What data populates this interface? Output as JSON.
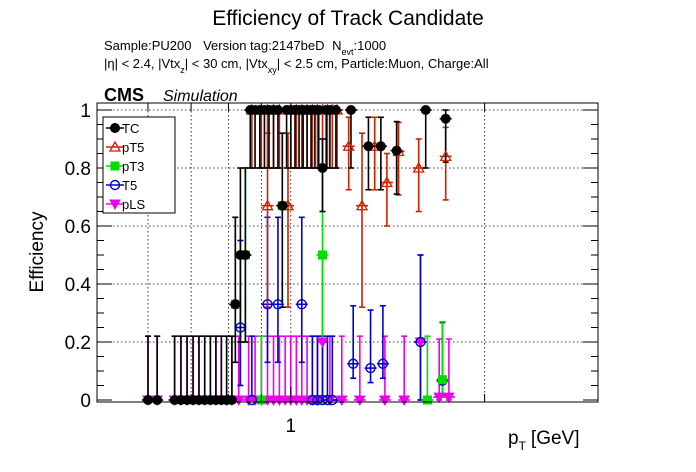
{
  "chart_data": {
    "type": "scatter",
    "title": "Efficiency of Track Candidate",
    "subtitle_line1": {
      "sample": "Sample:PU200",
      "version": "Version tag:2147beD",
      "nevt_prefix": "N",
      "nevt_sub": "evt",
      "nevt_value": ":1000"
    },
    "subtitle_line2": "|η| < 2.4, |Vtx_z| < 30 cm, |Vtx_xy| < 2.5 cm, Particle:Muon, Charge:All",
    "subtitle_line2_parts": [
      "|η| < 2.4, |Vtx",
      "z",
      "| < 30 cm, |Vtx",
      "xy",
      "| < 2.5 cm, Particle:Muon, Charge:All"
    ],
    "cms_label": "CMS",
    "cms_sublabel": "Simulation",
    "ylabel": "Efficiency",
    "xlabel_main": "p",
    "xlabel_sub": "T",
    "xlabel_unit": "[GeV]",
    "xscale": "log",
    "xlim": [
      0.5,
      3.0
    ],
    "ylim": [
      0,
      1.02
    ],
    "xtick_labels": [
      {
        "value": 1,
        "label": "1"
      }
    ],
    "yticks": [
      0,
      0.2,
      0.4,
      0.6,
      0.8,
      1
    ],
    "ytick_labels": [
      "0",
      "0.2",
      "0.4",
      "0.6",
      "0.8",
      "1"
    ],
    "grid": true,
    "legend_position": "top-left",
    "series": [
      {
        "name": "TC",
        "color": "#000000",
        "marker": "filled-circle",
        "points": [
          {
            "x": 0.6,
            "y": 0
          },
          {
            "x": 0.62,
            "y": 0
          },
          {
            "x": 0.66,
            "y": 0
          },
          {
            "x": 0.675,
            "y": 0
          },
          {
            "x": 0.69,
            "y": 0
          },
          {
            "x": 0.705,
            "y": 0
          },
          {
            "x": 0.72,
            "y": 0
          },
          {
            "x": 0.735,
            "y": 0
          },
          {
            "x": 0.75,
            "y": 0
          },
          {
            "x": 0.765,
            "y": 0
          },
          {
            "x": 0.78,
            "y": 0
          },
          {
            "x": 0.795,
            "y": 0
          },
          {
            "x": 0.81,
            "y": 0
          },
          {
            "x": 0.82,
            "y": 0.33
          },
          {
            "x": 0.835,
            "y": 0.5
          },
          {
            "x": 0.85,
            "y": 0.5
          },
          {
            "x": 0.865,
            "y": 1
          },
          {
            "x": 0.88,
            "y": 1
          },
          {
            "x": 0.895,
            "y": 1
          },
          {
            "x": 0.91,
            "y": 1
          },
          {
            "x": 0.925,
            "y": 1
          },
          {
            "x": 0.94,
            "y": 1
          },
          {
            "x": 0.955,
            "y": 1
          },
          {
            "x": 0.97,
            "y": 0.67
          },
          {
            "x": 0.985,
            "y": 1
          },
          {
            "x": 1.0,
            "y": 1
          },
          {
            "x": 1.015,
            "y": 1
          },
          {
            "x": 1.03,
            "y": 1
          },
          {
            "x": 1.045,
            "y": 1
          },
          {
            "x": 1.06,
            "y": 1
          },
          {
            "x": 1.075,
            "y": 1
          },
          {
            "x": 1.09,
            "y": 1
          },
          {
            "x": 1.105,
            "y": 1
          },
          {
            "x": 1.12,
            "y": 0.8
          },
          {
            "x": 1.135,
            "y": 1
          },
          {
            "x": 1.15,
            "y": 1
          },
          {
            "x": 1.175,
            "y": 1
          },
          {
            "x": 1.24,
            "y": 1
          },
          {
            "x": 1.32,
            "y": 0.875
          },
          {
            "x": 1.38,
            "y": 0.875
          },
          {
            "x": 1.46,
            "y": 0.86
          },
          {
            "x": 1.62,
            "y": 1
          },
          {
            "x": 1.74,
            "y": 0.97
          }
        ]
      },
      {
        "name": "pT5",
        "color": "#cc2200",
        "marker": "open-triangle",
        "points": [
          {
            "x": 0.87,
            "y": 1
          },
          {
            "x": 0.9,
            "y": 1
          },
          {
            "x": 0.92,
            "y": 1
          },
          {
            "x": 0.94,
            "y": 1
          },
          {
            "x": 0.96,
            "y": 1
          },
          {
            "x": 1.0,
            "y": 1
          },
          {
            "x": 1.02,
            "y": 1
          },
          {
            "x": 1.04,
            "y": 1
          },
          {
            "x": 1.06,
            "y": 1
          },
          {
            "x": 1.08,
            "y": 1
          },
          {
            "x": 1.1,
            "y": 1
          },
          {
            "x": 1.12,
            "y": 1
          },
          {
            "x": 1.14,
            "y": 1
          },
          {
            "x": 1.16,
            "y": 1
          },
          {
            "x": 1.18,
            "y": 1
          },
          {
            "x": 1.23,
            "y": 0.875
          },
          {
            "x": 1.29,
            "y": 0.67
          },
          {
            "x": 1.35,
            "y": 0.875
          },
          {
            "x": 1.41,
            "y": 0.75
          },
          {
            "x": 1.47,
            "y": 0.857
          },
          {
            "x": 1.58,
            "y": 0.8
          },
          {
            "x": 1.74,
            "y": 0.84
          },
          {
            "x": 0.92,
            "y": 0.67
          },
          {
            "x": 0.99,
            "y": 0.67
          }
        ]
      },
      {
        "name": "pT3",
        "color": "#00dd00",
        "marker": "filled-square",
        "points": [
          {
            "x": 0.82,
            "y": 0.33
          },
          {
            "x": 0.85,
            "y": 0.5
          },
          {
            "x": 0.9,
            "y": 0
          },
          {
            "x": 0.97,
            "y": 0.67
          },
          {
            "x": 1.12,
            "y": 0.5
          },
          {
            "x": 1.63,
            "y": 0
          },
          {
            "x": 1.72,
            "y": 0.07
          }
        ]
      },
      {
        "name": "T5",
        "color": "#0000cc",
        "marker": "open-circle",
        "points": [
          {
            "x": 0.835,
            "y": 0.25
          },
          {
            "x": 0.87,
            "y": 0
          },
          {
            "x": 0.92,
            "y": 0.33
          },
          {
            "x": 0.955,
            "y": 0.33
          },
          {
            "x": 1.04,
            "y": 0.33
          },
          {
            "x": 1.08,
            "y": 0
          },
          {
            "x": 1.1,
            "y": 0
          },
          {
            "x": 1.12,
            "y": 0
          },
          {
            "x": 1.14,
            "y": 0
          },
          {
            "x": 1.16,
            "y": 0
          },
          {
            "x": 1.25,
            "y": 0.125
          },
          {
            "x": 1.33,
            "y": 0.11
          },
          {
            "x": 1.39,
            "y": 0.125
          },
          {
            "x": 1.59,
            "y": 0.2
          },
          {
            "x": 1.72,
            "y": 0.067
          }
        ]
      },
      {
        "name": "pLS",
        "color": "#ee00ee",
        "marker": "filled-triangle-down",
        "points": [
          {
            "x": 0.6,
            "y": 0
          },
          {
            "x": 0.62,
            "y": 0
          },
          {
            "x": 0.66,
            "y": 0
          },
          {
            "x": 0.675,
            "y": 0
          },
          {
            "x": 0.69,
            "y": 0
          },
          {
            "x": 0.705,
            "y": 0
          },
          {
            "x": 0.72,
            "y": 0
          },
          {
            "x": 0.735,
            "y": 0
          },
          {
            "x": 0.75,
            "y": 0
          },
          {
            "x": 0.765,
            "y": 0
          },
          {
            "x": 0.78,
            "y": 0
          },
          {
            "x": 0.795,
            "y": 0
          },
          {
            "x": 0.81,
            "y": 0
          },
          {
            "x": 0.83,
            "y": 0
          },
          {
            "x": 0.86,
            "y": 0
          },
          {
            "x": 0.88,
            "y": 0
          },
          {
            "x": 0.9,
            "y": 0
          },
          {
            "x": 0.92,
            "y": 0
          },
          {
            "x": 0.94,
            "y": 0
          },
          {
            "x": 0.96,
            "y": 0
          },
          {
            "x": 0.98,
            "y": 0
          },
          {
            "x": 1.0,
            "y": 0
          },
          {
            "x": 1.02,
            "y": 0
          },
          {
            "x": 1.04,
            "y": 0
          },
          {
            "x": 1.06,
            "y": 0
          },
          {
            "x": 1.08,
            "y": 0
          },
          {
            "x": 1.1,
            "y": 0
          },
          {
            "x": 1.12,
            "y": 0.2
          },
          {
            "x": 1.15,
            "y": 0
          },
          {
            "x": 1.2,
            "y": 0
          },
          {
            "x": 1.28,
            "y": 0
          },
          {
            "x": 1.4,
            "y": 0
          },
          {
            "x": 1.5,
            "y": 0
          },
          {
            "x": 1.59,
            "y": 0.2
          },
          {
            "x": 1.7,
            "y": 0.01
          },
          {
            "x": 1.76,
            "y": 0.01
          }
        ]
      }
    ]
  }
}
